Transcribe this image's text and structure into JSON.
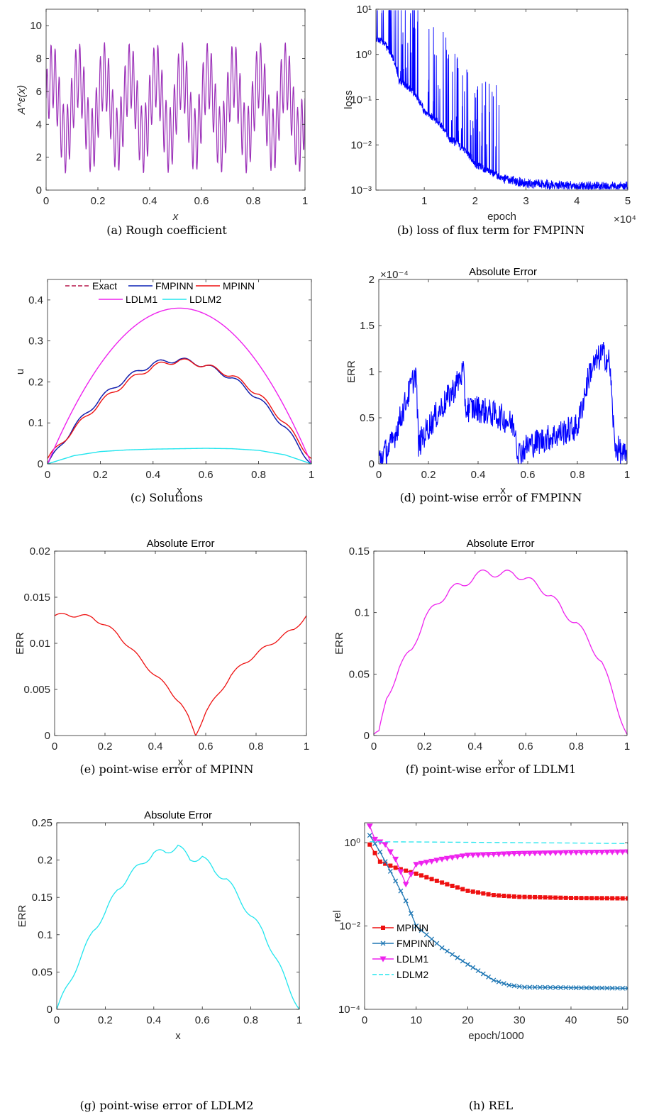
{
  "chart_data": [
    {
      "id": "a",
      "type": "line",
      "caption": "(a)  Rough coefficient",
      "title": "",
      "xlabel": "x",
      "ylabel": "A^ε(x)",
      "xlim": [
        0,
        1
      ],
      "ylim": [
        0,
        11
      ],
      "xticks": [
        0,
        0.2,
        0.4,
        0.6,
        0.8,
        1
      ],
      "xtick_labels": [
        "0",
        "0.2",
        "0.4",
        "0.6",
        "0.8",
        "1"
      ],
      "yticks": [
        0,
        2,
        4,
        6,
        8,
        10
      ],
      "ytick_labels": [
        "0",
        "2",
        "4",
        "6",
        "8",
        "10"
      ],
      "series": [
        {
          "color": "#9b30b8",
          "value_range": [
            1,
            9
          ],
          "periods": 10
        }
      ]
    },
    {
      "id": "b",
      "type": "line",
      "caption": "(b)  loss of flux term for FMPINN",
      "title": "",
      "xlabel": "epoch",
      "ylabel": "loss",
      "yscale": "log",
      "xlim": [
        0.05,
        5
      ],
      "ylim": [
        0.001,
        10
      ],
      "xticks": [
        1,
        2,
        3,
        4,
        5
      ],
      "xtick_labels": [
        "1",
        "2",
        "3",
        "4",
        "5"
      ],
      "x_multiplier": "×10⁴",
      "yticks": [
        0.001,
        0.01,
        0.1,
        1,
        10
      ],
      "ytick_labels": [
        "10⁻³",
        "10⁻²",
        "10⁻¹",
        "10⁰",
        "10¹"
      ],
      "series": [
        {
          "color": "#0000ff",
          "x": [
            0.05,
            0.2,
            0.5,
            1,
            1.5,
            2,
            2.5,
            3,
            4,
            5
          ],
          "y": [
            2.5,
            2.0,
            0.3,
            0.06,
            0.015,
            0.004,
            0.002,
            0.0015,
            0.0013,
            0.0013
          ]
        }
      ]
    },
    {
      "id": "c",
      "type": "line",
      "caption": "(c)  Solutions",
      "title": "",
      "xlabel": "x",
      "ylabel": "u",
      "xlim": [
        0,
        1
      ],
      "ylim": [
        0,
        0.45
      ],
      "xticks": [
        0,
        0.2,
        0.4,
        0.6,
        0.8,
        1
      ],
      "xtick_labels": [
        "0",
        "0.2",
        "0.4",
        "0.6",
        "0.8",
        "1"
      ],
      "yticks": [
        0,
        0.1,
        0.2,
        0.3,
        0.4
      ],
      "ytick_labels": [
        "0",
        "0.1",
        "0.2",
        "0.3",
        "0.4"
      ],
      "legend": [
        "Exact",
        "FMPINN",
        "MPINN",
        "LDLM1",
        "LDLM2"
      ],
      "series": [
        {
          "name": "Exact",
          "color": "#b5174a",
          "x": [
            0,
            0.1,
            0.2,
            0.3,
            0.4,
            0.5,
            0.6,
            0.7,
            0.8,
            0.9,
            1
          ],
          "y": [
            0,
            0.09,
            0.16,
            0.21,
            0.245,
            0.255,
            0.24,
            0.21,
            0.16,
            0.09,
            0
          ]
        },
        {
          "name": "FMPINN",
          "color": "#0b22b5",
          "x": [
            0,
            0.1,
            0.2,
            0.3,
            0.4,
            0.5,
            0.6,
            0.7,
            0.8,
            0.9,
            1
          ],
          "y": [
            0,
            0.09,
            0.16,
            0.21,
            0.245,
            0.255,
            0.24,
            0.21,
            0.16,
            0.09,
            0
          ]
        },
        {
          "name": "MPINN",
          "color": "#ee1111",
          "x": [
            0,
            0.1,
            0.2,
            0.3,
            0.4,
            0.5,
            0.6,
            0.7,
            0.8,
            0.9,
            1
          ],
          "y": [
            0.013,
            0.085,
            0.15,
            0.2,
            0.238,
            0.253,
            0.24,
            0.215,
            0.17,
            0.1,
            0.013
          ]
        },
        {
          "name": "LDLM1",
          "color": "#ee22ee",
          "x": [
            0,
            0.1,
            0.2,
            0.3,
            0.4,
            0.5,
            0.6,
            0.7,
            0.8,
            0.9,
            1
          ],
          "y": [
            0,
            0.14,
            0.245,
            0.32,
            0.365,
            0.38,
            0.365,
            0.32,
            0.245,
            0.14,
            0
          ]
        },
        {
          "name": "LDLM2",
          "color": "#22e5ee",
          "x": [
            0,
            0.1,
            0.2,
            0.3,
            0.4,
            0.5,
            0.6,
            0.7,
            0.8,
            0.9,
            1
          ],
          "y": [
            0,
            0.02,
            0.03,
            0.034,
            0.036,
            0.037,
            0.038,
            0.037,
            0.033,
            0.022,
            0
          ]
        }
      ]
    },
    {
      "id": "d",
      "type": "line",
      "caption": "(d)  point-wise error of FMPINN",
      "title": "Absolute Error",
      "xlabel": "x",
      "ylabel": "ERR",
      "xlim": [
        0,
        1
      ],
      "ylim": [
        0,
        0.0002
      ],
      "xticks": [
        0,
        0.2,
        0.4,
        0.6,
        0.8,
        1
      ],
      "xtick_labels": [
        "0",
        "0.2",
        "0.4",
        "0.6",
        "0.8",
        "1"
      ],
      "yticks": [
        0,
        5e-05,
        0.0001,
        0.00015,
        0.0002
      ],
      "ytick_labels": [
        "0",
        "0.5",
        "1",
        "1.5",
        "2"
      ],
      "y_multiplier": "×10⁻⁴",
      "series": [
        {
          "color": "#0000ff",
          "x": [
            0,
            0.05,
            0.1,
            0.15,
            0.16,
            0.2,
            0.3,
            0.34,
            0.35,
            0.4,
            0.5,
            0.55,
            0.56,
            0.6,
            0.7,
            0.8,
            0.85,
            0.9,
            0.93,
            0.95,
            1
          ],
          "y": [
            5e-06,
            2e-05,
            6e-05,
            0.0001,
            2e-05,
            4e-05,
            8e-05,
            0.0001,
            6e-05,
            6e-05,
            5e-05,
            4e-05,
            1e-05,
            2e-05,
            3e-05,
            4e-05,
            0.0001,
            0.00012,
            0.00011,
            2e-05,
            5e-06
          ]
        }
      ]
    },
    {
      "id": "e",
      "type": "line",
      "caption": "(e)  point-wise error of MPINN",
      "title": "Absolute Error",
      "xlabel": "x",
      "ylabel": "ERR",
      "xlim": [
        0,
        1
      ],
      "ylim": [
        0,
        0.02
      ],
      "xticks": [
        0,
        0.2,
        0.4,
        0.6,
        0.8,
        1
      ],
      "xtick_labels": [
        "0",
        "0.2",
        "0.4",
        "0.6",
        "0.8",
        "1"
      ],
      "yticks": [
        0,
        0.005,
        0.01,
        0.015,
        0.02
      ],
      "ytick_labels": [
        "0",
        "0.005",
        "0.01",
        "0.015",
        "0.02"
      ],
      "series": [
        {
          "color": "#ee1111",
          "x": [
            0,
            0.05,
            0.1,
            0.15,
            0.2,
            0.25,
            0.3,
            0.35,
            0.4,
            0.45,
            0.5,
            0.53,
            0.56,
            0.6,
            0.65,
            0.7,
            0.75,
            0.8,
            0.85,
            0.9,
            0.95,
            1
          ],
          "y": [
            0.013,
            0.0131,
            0.013,
            0.0128,
            0.012,
            0.011,
            0.0095,
            0.008,
            0.0065,
            0.0052,
            0.0035,
            0.002,
            0.0001,
            0.0025,
            0.0045,
            0.0065,
            0.0078,
            0.0088,
            0.0098,
            0.0107,
            0.0115,
            0.013
          ]
        }
      ]
    },
    {
      "id": "f",
      "type": "line",
      "caption": "(f)  point-wise error of LDLM1",
      "title": "Absolute Error",
      "xlabel": "x",
      "ylabel": "ERR",
      "xlim": [
        0,
        1
      ],
      "ylim": [
        0,
        0.15
      ],
      "xticks": [
        0,
        0.2,
        0.4,
        0.6,
        0.8,
        1
      ],
      "xtick_labels": [
        "0",
        "0.2",
        "0.4",
        "0.6",
        "0.8",
        "1"
      ],
      "yticks": [
        0,
        0.05,
        0.1,
        0.15
      ],
      "ytick_labels": [
        "0",
        "0.05",
        "0.1",
        "0.15"
      ],
      "series": [
        {
          "color": "#ee22ee",
          "x": [
            0,
            0.02,
            0.05,
            0.1,
            0.15,
            0.2,
            0.25,
            0.3,
            0.35,
            0.4,
            0.45,
            0.5,
            0.55,
            0.6,
            0.65,
            0.7,
            0.75,
            0.8,
            0.85,
            0.9,
            0.95,
            1
          ],
          "y": [
            0.001,
            0.001,
            0.03,
            0.055,
            0.07,
            0.095,
            0.107,
            0.119,
            0.122,
            0.13,
            0.133,
            0.131,
            0.132,
            0.128,
            0.121,
            0.114,
            0.1,
            0.092,
            0.076,
            0.06,
            0.03,
            0.001
          ]
        }
      ]
    },
    {
      "id": "g",
      "type": "line",
      "caption": "(g)  point-wise error of LDLM2",
      "title": "Absolute Error",
      "xlabel": "x",
      "ylabel": "ERR",
      "xlim": [
        0,
        1
      ],
      "ylim": [
        0,
        0.25
      ],
      "xticks": [
        0,
        0.2,
        0.4,
        0.6,
        0.8,
        1
      ],
      "xtick_labels": [
        "0",
        "0.2",
        "0.4",
        "0.6",
        "0.8",
        "1"
      ],
      "yticks": [
        0,
        0.05,
        0.1,
        0.15,
        0.2,
        0.25
      ],
      "ytick_labels": [
        "0",
        "0.05",
        "0.1",
        "0.15",
        "0.2",
        "0.25"
      ],
      "series": [
        {
          "color": "#22e5ee",
          "x": [
            0,
            0.05,
            0.1,
            0.15,
            0.2,
            0.25,
            0.3,
            0.35,
            0.4,
            0.45,
            0.5,
            0.55,
            0.6,
            0.65,
            0.7,
            0.75,
            0.8,
            0.85,
            0.9,
            0.95,
            1
          ],
          "y": [
            0,
            0.035,
            0.07,
            0.105,
            0.13,
            0.16,
            0.18,
            0.195,
            0.21,
            0.21,
            0.22,
            0.2,
            0.205,
            0.185,
            0.175,
            0.15,
            0.125,
            0.105,
            0.07,
            0.035,
            0
          ]
        }
      ]
    },
    {
      "id": "h",
      "type": "line",
      "caption": "(h)  REL",
      "title": "",
      "xlabel": "epoch/1000",
      "ylabel": "rel",
      "yscale": "log",
      "xlim": [
        0,
        51
      ],
      "ylim": [
        0.0001,
        3
      ],
      "xticks": [
        0,
        10,
        20,
        30,
        40,
        50
      ],
      "xtick_labels": [
        "0",
        "10",
        "20",
        "30",
        "40",
        "50"
      ],
      "yticks": [
        0.0001,
        0.01,
        1
      ],
      "ytick_labels": [
        "10⁻⁴",
        "10⁻²",
        "10⁰"
      ],
      "legend": [
        "MPINN",
        "FMPINN",
        "LDLM1",
        "LDLM2"
      ],
      "series": [
        {
          "name": "MPINN",
          "color": "#ee1111",
          "marker": "square",
          "x": [
            1,
            3,
            6,
            10,
            15,
            20,
            25,
            30,
            40,
            51
          ],
          "y": [
            0.9,
            0.35,
            0.25,
            0.18,
            0.11,
            0.07,
            0.055,
            0.05,
            0.047,
            0.046
          ]
        },
        {
          "name": "FMPINN",
          "color": "#1f77b4",
          "marker": "x",
          "x": [
            1,
            3,
            6,
            8,
            10,
            15,
            20,
            25,
            28,
            31,
            40,
            51
          ],
          "y": [
            1.5,
            0.6,
            0.12,
            0.04,
            0.01,
            0.003,
            0.0012,
            0.0005,
            0.00038,
            0.00034,
            0.00033,
            0.00032
          ]
        },
        {
          "name": "LDLM1",
          "color": "#ee22ee",
          "marker": "triangle-down",
          "x": [
            1,
            2,
            4,
            6,
            8,
            10,
            15,
            20,
            30,
            40,
            51
          ],
          "y": [
            2.5,
            1.2,
            0.9,
            0.4,
            0.1,
            0.3,
            0.4,
            0.5,
            0.55,
            0.58,
            0.6
          ]
        },
        {
          "name": "LDLM2",
          "color": "#22e5ee",
          "marker": "dashed",
          "x": [
            1,
            10,
            20,
            30,
            40,
            51
          ],
          "y": [
            1.05,
            1.04,
            1.02,
            1.0,
            0.98,
            0.95
          ]
        }
      ]
    }
  ]
}
